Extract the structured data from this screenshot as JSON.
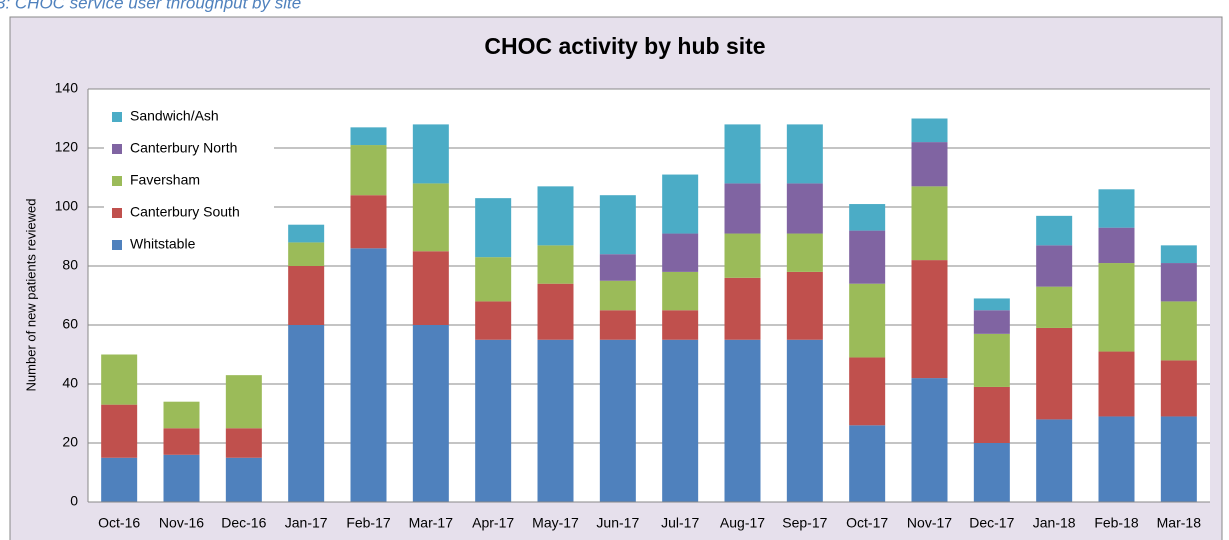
{
  "caption": "3: CHOC service user throughput by site",
  "chart_data": {
    "type": "stacked_bar",
    "title": "CHOC activity by hub site",
    "ylabel": "Number of new patients reviewed",
    "categories": [
      "Oct-16",
      "Nov-16",
      "Dec-16",
      "Jan-17",
      "Feb-17",
      "Mar-17",
      "Apr-17",
      "May-17",
      "Jun-17",
      "Jul-17",
      "Aug-17",
      "Sep-17",
      "Oct-17",
      "Nov-17",
      "Dec-17",
      "Jan-18",
      "Feb-18",
      "Mar-18"
    ],
    "series": [
      {
        "name": "Whitstable",
        "color": "#4f81bd",
        "values": [
          15,
          16,
          15,
          60,
          86,
          60,
          55,
          55,
          55,
          55,
          55,
          55,
          26,
          42,
          20,
          28,
          29,
          29
        ]
      },
      {
        "name": "Canterbury South",
        "color": "#c0504d",
        "values": [
          18,
          9,
          10,
          20,
          18,
          25,
          13,
          19,
          10,
          10,
          21,
          23,
          23,
          40,
          19,
          31,
          22,
          19
        ]
      },
      {
        "name": "Faversham",
        "color": "#9bbb59",
        "values": [
          17,
          9,
          18,
          8,
          17,
          23,
          15,
          13,
          10,
          13,
          15,
          13,
          25,
          25,
          18,
          14,
          30,
          20
        ]
      },
      {
        "name": "Canterbury North",
        "color": "#8064a2",
        "values": [
          0,
          0,
          0,
          0,
          0,
          0,
          0,
          0,
          9,
          13,
          17,
          17,
          18,
          15,
          8,
          14,
          12,
          13
        ]
      },
      {
        "name": "Sandwich/Ash",
        "color": "#4bacc6",
        "values": [
          0,
          0,
          0,
          6,
          6,
          20,
          20,
          20,
          20,
          20,
          20,
          20,
          9,
          8,
          4,
          10,
          13,
          6
        ]
      }
    ],
    "ylim": [
      0,
      140
    ],
    "yticks": [
      0,
      20,
      40,
      60,
      80,
      100,
      120,
      140
    ],
    "grid": true,
    "legend": "upper left"
  }
}
